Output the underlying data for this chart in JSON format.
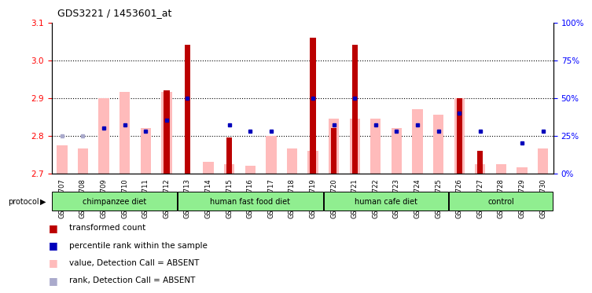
{
  "title": "GDS3221 / 1453601_at",
  "samples": [
    "GSM144707",
    "GSM144708",
    "GSM144709",
    "GSM144710",
    "GSM144711",
    "GSM144712",
    "GSM144713",
    "GSM144714",
    "GSM144715",
    "GSM144716",
    "GSM144717",
    "GSM144718",
    "GSM144719",
    "GSM144720",
    "GSM144721",
    "GSM144722",
    "GSM144723",
    "GSM144724",
    "GSM144725",
    "GSM144726",
    "GSM144727",
    "GSM144728",
    "GSM144729",
    "GSM144730"
  ],
  "transformed_count": [
    null,
    null,
    null,
    null,
    null,
    2.92,
    3.04,
    null,
    2.795,
    null,
    null,
    null,
    3.06,
    2.82,
    3.04,
    null,
    null,
    null,
    null,
    2.9,
    2.76,
    null,
    null,
    null
  ],
  "pink_bar_top": [
    2.775,
    2.765,
    2.9,
    2.915,
    2.82,
    2.915,
    null,
    2.73,
    2.725,
    2.72,
    2.8,
    2.765,
    2.76,
    2.845,
    2.845,
    2.845,
    2.82,
    2.87,
    2.855,
    2.9,
    2.725,
    2.725,
    2.715,
    2.765
  ],
  "blue_square_rank": [
    25,
    25,
    30,
    32,
    28,
    35,
    50,
    null,
    32,
    28,
    28,
    null,
    50,
    32,
    50,
    32,
    28,
    32,
    28,
    40,
    28,
    null,
    20,
    28
  ],
  "blue_square_absent": [
    true,
    true,
    false,
    false,
    false,
    false,
    false,
    false,
    false,
    false,
    false,
    false,
    false,
    false,
    false,
    false,
    false,
    false,
    false,
    false,
    false,
    false,
    false,
    false
  ],
  "group_list": [
    [
      "chimpanzee diet",
      [
        0,
        1,
        2,
        3,
        4,
        5
      ]
    ],
    [
      "human fast food diet",
      [
        6,
        7,
        8,
        9,
        10,
        11,
        12
      ]
    ],
    [
      "human cafe diet",
      [
        13,
        14,
        15,
        16,
        17,
        18
      ]
    ],
    [
      "control",
      [
        19,
        20,
        21,
        22,
        23
      ]
    ]
  ],
  "ylim_left": [
    2.7,
    3.1
  ],
  "ylim_right": [
    0,
    100
  ],
  "yticks_left": [
    2.7,
    2.8,
    2.9,
    3.0,
    3.1
  ],
  "yticks_right": [
    0,
    25,
    50,
    75,
    100
  ],
  "bar_color_red": "#BB0000",
  "bar_color_pink": "#FFBBBB",
  "bar_color_blue": "#0000BB",
  "bar_color_lightblue": "#AAAACC",
  "baseline": 2.7
}
